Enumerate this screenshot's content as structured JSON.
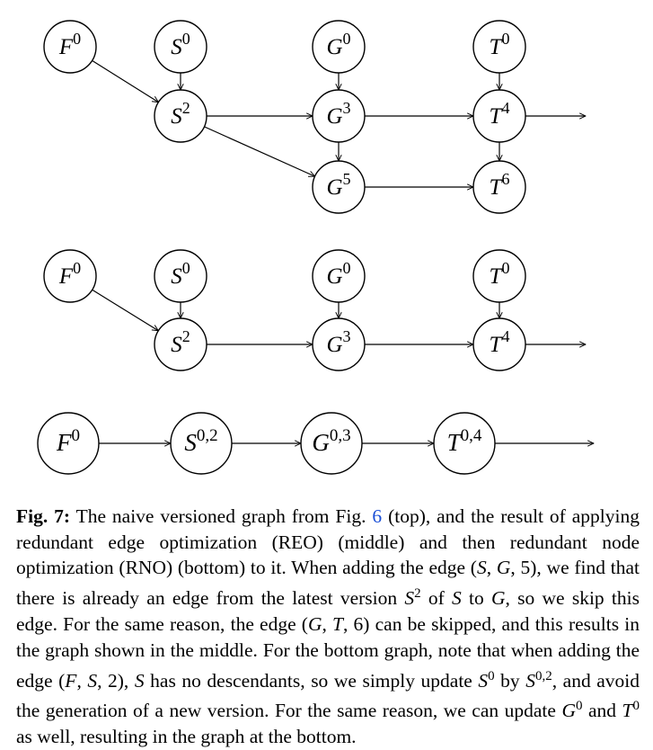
{
  "figure": {
    "label": "Fig. 7:",
    "ref_text": "6",
    "caption_runs": [
      " The naive versioned graph from Fig. ",
      "@ref",
      " (top), and the result of applying redundant edge optimization (REO) (middle) and then redundant node optimization (RNO) (bottom) to it. When adding the edge (",
      "*S",
      ", ",
      "*G",
      ", 5), we find that there is already an edge from the latest version ",
      "*S",
      "^2",
      " of ",
      "*S",
      " to ",
      "*G",
      ", so we skip this edge. For the same reason, the edge (",
      "*G",
      ", ",
      "*T",
      ", 6) can be skipped, and this results in the graph shown in the middle. For the bottom graph, note that when adding the edge (",
      "*F",
      ", ",
      "*S",
      ", 2), ",
      "*S",
      " has no descendants, so we simply update ",
      "*S",
      "^0",
      " by ",
      "*S",
      "^0,2",
      ", and avoid the generation of a new version. For the same reason, we can update ",
      "*G",
      "^0",
      " and ",
      "*T",
      "^0",
      " as well, resulting in the graph at the bottom."
    ]
  },
  "graphs": {
    "top": {
      "nodes": [
        {
          "id": "F0",
          "base": "F",
          "sup": "0"
        },
        {
          "id": "S0",
          "base": "S",
          "sup": "0"
        },
        {
          "id": "G0",
          "base": "G",
          "sup": "0"
        },
        {
          "id": "T0",
          "base": "T",
          "sup": "0"
        },
        {
          "id": "S2",
          "base": "S",
          "sup": "2"
        },
        {
          "id": "G3",
          "base": "G",
          "sup": "3"
        },
        {
          "id": "T4",
          "base": "T",
          "sup": "4"
        },
        {
          "id": "G5",
          "base": "G",
          "sup": "5"
        },
        {
          "id": "T6",
          "base": "T",
          "sup": "6"
        }
      ],
      "edges": [
        [
          "F0",
          "S2"
        ],
        [
          "S0",
          "S2"
        ],
        [
          "G0",
          "G3"
        ],
        [
          "T0",
          "T4"
        ],
        [
          "S2",
          "G3"
        ],
        [
          "G3",
          "T4"
        ],
        [
          "T4",
          "out"
        ],
        [
          "S2",
          "G5"
        ],
        [
          "G3",
          "G5"
        ],
        [
          "T4",
          "T6"
        ],
        [
          "G5",
          "T6"
        ]
      ]
    },
    "middle": {
      "nodes": [
        {
          "id": "F0",
          "base": "F",
          "sup": "0"
        },
        {
          "id": "S0",
          "base": "S",
          "sup": "0"
        },
        {
          "id": "G0",
          "base": "G",
          "sup": "0"
        },
        {
          "id": "T0",
          "base": "T",
          "sup": "0"
        },
        {
          "id": "S2",
          "base": "S",
          "sup": "2"
        },
        {
          "id": "G3",
          "base": "G",
          "sup": "3"
        },
        {
          "id": "T4",
          "base": "T",
          "sup": "4"
        }
      ],
      "edges": [
        [
          "F0",
          "S2"
        ],
        [
          "S0",
          "S2"
        ],
        [
          "G0",
          "G3"
        ],
        [
          "T0",
          "T4"
        ],
        [
          "S2",
          "G3"
        ],
        [
          "G3",
          "T4"
        ],
        [
          "T4",
          "out"
        ]
      ]
    },
    "bottom": {
      "nodes": [
        {
          "id": "F0",
          "base": "F",
          "sup": "0"
        },
        {
          "id": "S02",
          "base": "S",
          "sup": "0,2"
        },
        {
          "id": "G03",
          "base": "G",
          "sup": "0,3"
        },
        {
          "id": "T04",
          "base": "T",
          "sup": "0,4"
        }
      ],
      "edges": [
        [
          "F0",
          "S02"
        ],
        [
          "S02",
          "G03"
        ],
        [
          "G03",
          "T04"
        ],
        [
          "T04",
          "out"
        ]
      ]
    }
  }
}
